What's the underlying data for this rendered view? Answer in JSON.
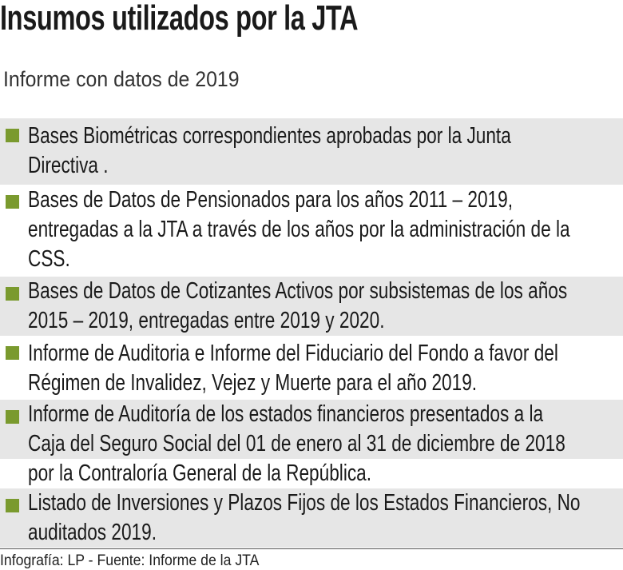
{
  "header": {
    "title": "Insumos utilizados por la JTA",
    "subtitle": "Informe con datos de 2019"
  },
  "colors": {
    "bullet": "#7a9a2e",
    "row_alt": "#e6e6e6"
  },
  "items": [
    {
      "lines": [
        "Bases Biométricas correspondientes aprobadas por la Junta",
        "Directiva ."
      ]
    },
    {
      "lines": [
        "Bases de Datos de Pensionados para los años 2011 – 2019,",
        "entregadas a la JTA a través de los años por la administración de la",
        "CSS."
      ]
    },
    {
      "lines": [
        "Bases de Datos de Cotizantes Activos por subsistemas de los años",
        "2015 – 2019, entregadas entre 2019 y 2020."
      ]
    },
    {
      "lines": [
        "Informe de Auditoria e Informe del Fiduciario del Fondo a favor del",
        "Régimen de Invalidez, Vejez y Muerte para el año 2019."
      ]
    },
    {
      "lines": [
        "Informe de Auditoría de los estados financieros presentados a la",
        "Caja del Seguro Social del 01 de enero al 31 de diciembre de 2018",
        "por la Contraloría General de la República."
      ]
    },
    {
      "lines": [
        "Listado de Inversiones y Plazos Fijos de los Estados Financieros, No",
        "auditados 2019."
      ]
    }
  ],
  "footer": {
    "credit": "Infografía: LP - Fuente: Informe de la JTA"
  }
}
